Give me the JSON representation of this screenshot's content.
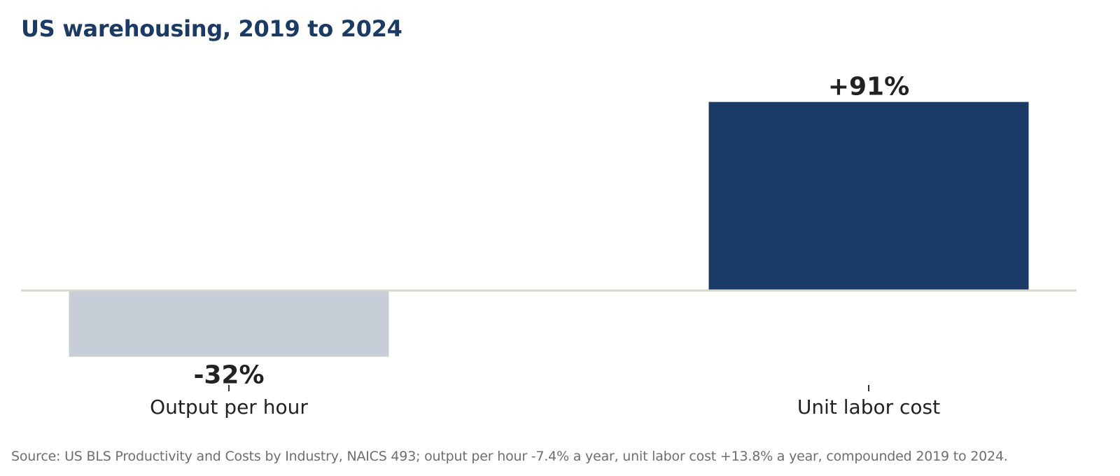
{
  "chart_data": {
    "type": "bar",
    "title": "US warehousing, 2019 to 2024",
    "categories": [
      "Output per hour",
      "Unit labor cost"
    ],
    "values": [
      -32,
      91
    ],
    "data_labels": [
      "-32%",
      "+91%"
    ],
    "unit": "%",
    "ylim": [
      -40,
      100
    ],
    "grid": false,
    "legend": "none",
    "colors": [
      "#c8ced8",
      "#1b3a66"
    ],
    "zero_line_color": "#d8d8cc",
    "source": "Source: US BLS Productivity and Costs by Industry, NAICS 493; output per hour -7.4% a year, unit labor cost +13.8% a year, compounded 2019 to 2024."
  }
}
